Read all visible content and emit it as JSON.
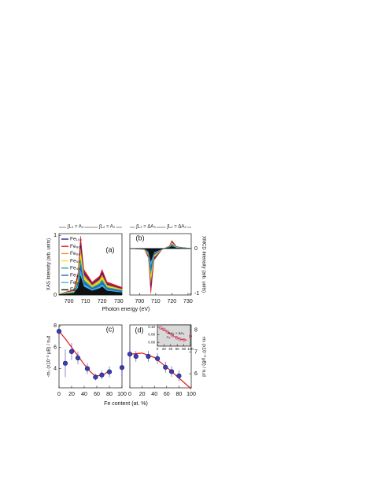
{
  "chart_data": [
    {
      "type": "area",
      "title": "(a)",
      "xlabel": "Photon energy (eV)",
      "ylabel": "XAS Intensity (arb. units)",
      "annotations": [
        "∫L₃ = A₃",
        "∫L₂ = A₂"
      ],
      "x": [
        694,
        703,
        705.5,
        707,
        709,
        714,
        718.5,
        720,
        723,
        732
      ],
      "series": [
        {
          "name": "Fe₁₀₀",
          "color": "#1f2a8c",
          "values": [
            0.02,
            0.08,
            0.33,
            0.87,
            0.38,
            0.19,
            0.29,
            0.38,
            0.19,
            0.11
          ]
        },
        {
          "name": "Fe₈₀",
          "color": "#e3141c",
          "values": [
            0.02,
            0.09,
            0.38,
            0.99,
            0.43,
            0.22,
            0.32,
            0.43,
            0.22,
            0.13
          ]
        },
        {
          "name": "Fe₆₈",
          "color": "#f08a1c",
          "values": [
            0.02,
            0.07,
            0.3,
            0.78,
            0.34,
            0.17,
            0.26,
            0.34,
            0.17,
            0.1
          ]
        },
        {
          "name": "Fe₅₈",
          "color": "#f5e61e",
          "values": [
            0.02,
            0.06,
            0.26,
            0.69,
            0.3,
            0.15,
            0.23,
            0.3,
            0.15,
            0.09
          ]
        },
        {
          "name": "Fe₄₄",
          "color": "#2aa88a",
          "values": [
            0.01,
            0.05,
            0.23,
            0.6,
            0.26,
            0.13,
            0.2,
            0.26,
            0.13,
            0.08
          ]
        },
        {
          "name": "Fe₃₂",
          "color": "#2a5ec8",
          "values": [
            0.01,
            0.04,
            0.19,
            0.51,
            0.22,
            0.11,
            0.17,
            0.22,
            0.11,
            0.07
          ]
        },
        {
          "name": "Fe₂₀",
          "color": "#3fb4e6",
          "values": [
            0.01,
            0.04,
            0.16,
            0.41,
            0.18,
            0.09,
            0.14,
            0.18,
            0.09,
            0.05
          ]
        },
        {
          "name": "Fe₁₆",
          "color": "#111111",
          "values": [
            0.01,
            0.03,
            0.12,
            0.32,
            0.14,
            0.07,
            0.11,
            0.14,
            0.07,
            0.04
          ]
        }
      ],
      "xlim": [
        694,
        732
      ],
      "xticks": [
        700,
        710,
        720,
        730
      ],
      "ylim": [
        0,
        1.03
      ],
      "yticks": [
        0,
        1
      ],
      "y_axis_side": "left",
      "legend": "left"
    },
    {
      "type": "area",
      "title": "(b)",
      "ylabel": "XMCD Intensity (arb. units)",
      "annotations": [
        "∫L₃ = ΔA₃",
        "∫L₂ = ΔA₂"
      ],
      "x": [
        694,
        703,
        705.5,
        707,
        709,
        714,
        718.5,
        720,
        723,
        732
      ],
      "series": [
        {
          "name": "Fe₁₀₀",
          "color": "#1f2a8c",
          "values": [
            0,
            -0.02,
            -0.18,
            -0.86,
            -0.23,
            -0.02,
            0.05,
            0.15,
            0.04,
            0
          ]
        },
        {
          "name": "Fe₈₀",
          "color": "#e3141c",
          "values": [
            0,
            -0.02,
            -0.21,
            -1.0,
            -0.26,
            -0.02,
            0.06,
            0.18,
            0.04,
            0
          ]
        },
        {
          "name": "Fe₆₈",
          "color": "#f08a1c",
          "values": [
            0,
            -0.02,
            -0.16,
            -0.76,
            -0.2,
            -0.02,
            0.05,
            0.14,
            0.03,
            0
          ]
        },
        {
          "name": "Fe₅₈",
          "color": "#f5e61e",
          "values": [
            0,
            -0.01,
            -0.14,
            -0.67,
            -0.18,
            -0.01,
            0.04,
            0.12,
            0.03,
            0
          ]
        },
        {
          "name": "Fe₄₄",
          "color": "#2aa88a",
          "values": [
            0,
            -0.01,
            -0.12,
            -0.57,
            -0.15,
            -0.01,
            0.04,
            0.1,
            0.02,
            0
          ]
        },
        {
          "name": "Fe₃₂",
          "color": "#2a5ec8",
          "values": [
            0,
            -0.01,
            -0.1,
            -0.48,
            -0.13,
            -0.01,
            0.03,
            0.09,
            0.02,
            0
          ]
        },
        {
          "name": "Fe₂₀",
          "color": "#3fb4e6",
          "values": [
            0,
            -0.01,
            -0.08,
            -0.38,
            -0.1,
            -0.01,
            0.02,
            0.07,
            0.02,
            0
          ]
        },
        {
          "name": "Fe₁₆",
          "color": "#111111",
          "values": [
            0,
            -0.01,
            -0.06,
            -0.29,
            -0.08,
            -0.01,
            0.02,
            0.05,
            0.01,
            0
          ]
        }
      ],
      "xlim": [
        694,
        732
      ],
      "xticks": [
        700,
        710,
        720,
        730
      ],
      "ylim": [
        -1.03,
        0.33
      ],
      "yticks": [
        -1,
        0
      ],
      "y_axis_side": "right"
    },
    {
      "type": "scatter",
      "title": "(c)",
      "xlabel": "Fe content (at. %)",
      "ylabel": "-mₛ (x10⁻² μB) / n₃d",
      "x": [
        0,
        10,
        20,
        30,
        45,
        58,
        68,
        80,
        100
      ],
      "values": [
        7.5,
        4.5,
        5.6,
        5.0,
        4.0,
        3.2,
        3.4,
        3.7,
        4.1
      ],
      "errors": [
        0.2,
        1.3,
        0.8,
        0.6,
        0.5,
        0.3,
        0.4,
        0.5,
        0.9
      ],
      "color": "#3b3fb0",
      "fit": {
        "x": [
          0,
          10,
          20,
          30,
          40,
          50,
          58,
          70,
          80
        ],
        "values": [
          7.5,
          6.8,
          6.0,
          5.2,
          4.4,
          3.7,
          3.3,
          3.4,
          3.8
        ],
        "color": "#e3141c"
      },
      "xlim": [
        0,
        100
      ],
      "xticks": [
        0,
        20,
        40,
        60,
        80,
        100
      ],
      "ylim": [
        2.2,
        8.1
      ],
      "yticks": [
        4,
        6,
        8
      ],
      "y_axis_side": "left"
    },
    {
      "type": "scatter",
      "title": "(d)",
      "ylabel": "-mₗ (x10⁻³ μB) / n₃d",
      "x": [
        0,
        10,
        30,
        45,
        58,
        68,
        80
      ],
      "values": [
        6.9,
        6.8,
        6.8,
        6.7,
        6.3,
        6.1,
        5.9
      ],
      "errors": [
        0.25,
        0.25,
        0.25,
        0.25,
        0.25,
        0.25,
        0.25
      ],
      "color": "#3b3fb0",
      "fit": {
        "x": [
          0,
          20,
          40,
          60,
          80,
          100
        ],
        "values": [
          6.9,
          6.95,
          6.75,
          6.3,
          5.8,
          5.3
        ],
        "color": "#e3141c"
      },
      "xlim": [
        0,
        100
      ],
      "xticks": [
        0,
        20,
        40,
        60,
        80,
        100
      ],
      "ylim": [
        5.35,
        8.25
      ],
      "yticks": [
        6,
        7,
        8
      ],
      "y_axis_side": "right"
    },
    {
      "type": "scatter",
      "annotations": [
        "ΔA₃ + ΔA₂",
        "A₃"
      ],
      "x": [
        10,
        20,
        30,
        45,
        58,
        68,
        80,
        100
      ],
      "values": [
        0.099,
        0.097,
        0.094,
        0.089,
        0.086,
        0.084,
        0.083,
        0.088
      ],
      "color": "#c0306a",
      "fit": {
        "x": [
          10,
          30,
          50,
          70,
          90
        ],
        "values": [
          0.099,
          0.094,
          0.088,
          0.084,
          0.083
        ],
        "color": "#e3141c"
      },
      "xlim": [
        0,
        100
      ],
      "xticks": [
        0,
        20,
        40,
        60,
        80,
        100
      ],
      "ylim": [
        0.075,
        0.103
      ],
      "yticks": [
        0.08,
        0.09,
        {
          "value": 0.1,
          "label": "0.10"
        }
      ],
      "y_axis_side": "left",
      "open_markers": true
    }
  ]
}
